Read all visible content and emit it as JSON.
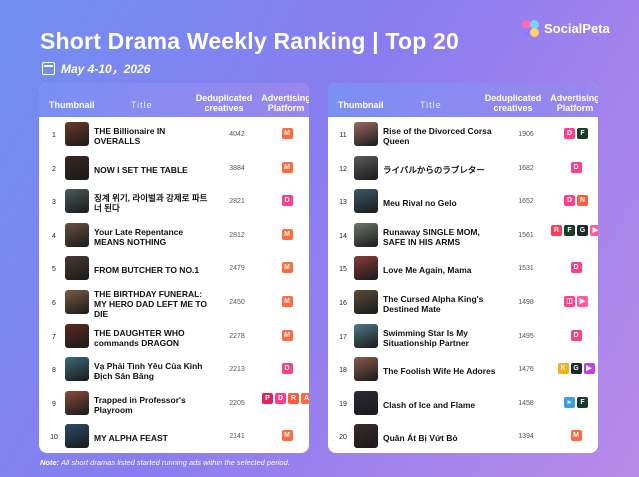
{
  "header": {
    "title": "Short Drama Weekly Ranking | Top 20",
    "date": "May 4-10，2026",
    "logo_text": "SocialPeta"
  },
  "columns": {
    "thumbnail": "Thumbnail",
    "title": "Title",
    "dedup": "Deduplicated creatives",
    "advertising": "Advertising Platform"
  },
  "left_rows": [
    {
      "rank": "1",
      "title": "THE Billionaire IN OVERALLS",
      "value": "4042",
      "thumb_color": "#6b3a2a",
      "platforms": [
        {
          "name": "meta-icon",
          "glyph": "M",
          "color": "#ff6a3d"
        }
      ]
    },
    {
      "rank": "2",
      "title": "NOW I SET THE TABLE",
      "value": "3884",
      "thumb_color": "#3a2520",
      "platforms": [
        {
          "name": "meta-icon",
          "glyph": "M",
          "color": "#ff6a3d"
        }
      ]
    },
    {
      "rank": "3",
      "title": "징계 위기, 라이벌과 강제로 파트너 된다",
      "value": "2821",
      "thumb_color": "#4a5a5a",
      "platforms": [
        {
          "name": "reelshort-icon",
          "glyph": "D",
          "color": "#ff3d8a"
        }
      ]
    },
    {
      "rank": "4",
      "title": "Your Late Repentance MEANS NOTHING",
      "value": "2812",
      "thumb_color": "#6a5040",
      "platforms": [
        {
          "name": "meta-icon",
          "glyph": "M",
          "color": "#ff6a3d"
        }
      ]
    },
    {
      "rank": "5",
      "title": "FROM BUTCHER TO NO.1",
      "value": "2479",
      "thumb_color": "#4a3a30",
      "platforms": [
        {
          "name": "meta-icon",
          "glyph": "M",
          "color": "#ff6a3d"
        }
      ]
    },
    {
      "rank": "6",
      "title": "THE BIRTHDAY FUNERAL: MY HERO DAD LEFT ME TO DIE",
      "value": "2450",
      "thumb_color": "#7a5a40",
      "platforms": [
        {
          "name": "meta-icon",
          "glyph": "M",
          "color": "#ff6a3d"
        }
      ]
    },
    {
      "rank": "7",
      "title": "THE DAUGHTER WHO commands DRAGON",
      "value": "2278",
      "thumb_color": "#5a2a20",
      "platforms": [
        {
          "name": "meta-icon",
          "glyph": "M",
          "color": "#ff6a3d"
        }
      ]
    },
    {
      "rank": "8",
      "title": "Vạ Phải Tình Yêu Của Kình Địch Sân Băng",
      "value": "2213",
      "thumb_color": "#3a6a7a",
      "platforms": [
        {
          "name": "reelshort-icon",
          "glyph": "D",
          "color": "#ff3d8a"
        }
      ]
    },
    {
      "rank": "9",
      "title": "Trapped in Professor's Playroom",
      "value": "2205",
      "thumb_color": "#8a4a3a",
      "platforms": [
        {
          "name": "pinterest-icon",
          "glyph": "P",
          "color": "#e0245e"
        },
        {
          "name": "reelshort-icon",
          "glyph": "D",
          "color": "#ff3d8a"
        },
        {
          "name": "reels-icon",
          "glyph": "R",
          "color": "#ff5a3d"
        },
        {
          "name": "alert-icon",
          "glyph": "A",
          "color": "#ff6a3d"
        }
      ]
    },
    {
      "rank": "10",
      "title": "MY ALPHA FEAST",
      "value": "2141",
      "thumb_color": "#2a4a6a",
      "platforms": [
        {
          "name": "meta-icon",
          "glyph": "M",
          "color": "#ff6a3d"
        }
      ]
    }
  ],
  "right_rows": [
    {
      "rank": "11",
      "title": "Rise of the Divorced Corsa Queen",
      "value": "1906",
      "thumb_color": "#9a6a60",
      "platforms": [
        {
          "name": "reelshort-icon",
          "glyph": "D",
          "color": "#ff3d8a"
        },
        {
          "name": "flexitv-icon",
          "glyph": "F",
          "color": "#1a3a2a"
        }
      ]
    },
    {
      "rank": "12",
      "title": "ライバルからのラブレター",
      "value": "1682",
      "thumb_color": "#5a5a5a",
      "platforms": [
        {
          "name": "reelshort-icon",
          "glyph": "D",
          "color": "#ff3d8a"
        }
      ]
    },
    {
      "rank": "13",
      "title": "Meu Rival no Gelo",
      "value": "1652",
      "thumb_color": "#3a5a6a",
      "platforms": [
        {
          "name": "reelshort-icon",
          "glyph": "D",
          "color": "#ff3d8a"
        },
        {
          "name": "shortmax-icon",
          "glyph": "N",
          "color": "#ff5a3d"
        }
      ]
    },
    {
      "rank": "14",
      "title": "Runaway SINGLE MOM, SAFE IN HIS ARMS",
      "value": "1561",
      "thumb_color": "#6a7a6a",
      "platforms": [
        {
          "name": "reels-icon",
          "glyph": "R",
          "color": "#ff3d5a"
        },
        {
          "name": "flexitv-icon",
          "glyph": "F",
          "color": "#1a3a2a"
        },
        {
          "name": "goodshort-icon",
          "glyph": "G",
          "color": "#1a2a2a"
        },
        {
          "name": "play-icon",
          "glyph": "▶",
          "color": "#ff5aa0"
        }
      ]
    },
    {
      "rank": "15",
      "title": "Love Me Again, Mama",
      "value": "1531",
      "thumb_color": "#8a3a3a",
      "platforms": [
        {
          "name": "reelshort-icon",
          "glyph": "D",
          "color": "#ff3d8a"
        }
      ]
    },
    {
      "rank": "16",
      "title": "The Cursed Alpha King's Destined Mate",
      "value": "1498",
      "thumb_color": "#5a4a3a",
      "platforms": [
        {
          "name": "dramabox-icon",
          "glyph": "◫",
          "color": "#ff3d8a"
        },
        {
          "name": "play-icon",
          "glyph": "▶",
          "color": "#ff5aa0"
        }
      ]
    },
    {
      "rank": "17",
      "title": "Swimming Star Is My Situationship Partner",
      "value": "1495",
      "thumb_color": "#4a7a8a",
      "platforms": [
        {
          "name": "reelshort-icon",
          "glyph": "D",
          "color": "#ff3d8a"
        }
      ]
    },
    {
      "rank": "18",
      "title": "The Foolish Wife He Adores",
      "value": "1476",
      "thumb_color": "#8a5a4a",
      "platforms": [
        {
          "name": "kalos-icon",
          "glyph": "K",
          "color": "#f0b020"
        },
        {
          "name": "goodshort-icon",
          "glyph": "G",
          "color": "#1a2a2a"
        },
        {
          "name": "play-icon",
          "glyph": "▶",
          "color": "#c040e0"
        }
      ]
    },
    {
      "rank": "19",
      "title": "Clash of Ice and Flame",
      "value": "1458",
      "thumb_color": "#2a2a3a",
      "platforms": [
        {
          "name": "short-icon",
          "glyph": "▸",
          "color": "#3aa0e0"
        },
        {
          "name": "flexitv-icon",
          "glyph": "F",
          "color": "#1a3a2a"
        }
      ]
    },
    {
      "rank": "20",
      "title": "Quân Át Bị Vứt Bỏ",
      "value": "1394",
      "thumb_color": "#3a2a2a",
      "platforms": [
        {
          "name": "meta-icon",
          "glyph": "M",
          "color": "#ff6a3d"
        }
      ]
    }
  ],
  "note": {
    "label": "Note:",
    "text": "All short dramas listed started running ads within the selected period."
  }
}
